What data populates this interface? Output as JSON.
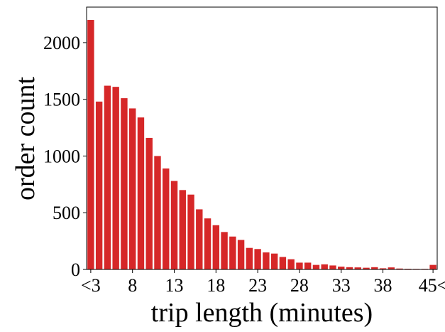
{
  "chart_data": {
    "type": "bar",
    "x_label": "trip length (minutes)",
    "y_label": "order count",
    "categories": [
      "<3",
      null,
      null,
      null,
      null,
      "8",
      null,
      null,
      null,
      null,
      "13",
      null,
      null,
      null,
      null,
      "18",
      null,
      null,
      null,
      null,
      "23",
      null,
      null,
      null,
      null,
      "28",
      null,
      null,
      null,
      null,
      "33",
      null,
      null,
      null,
      null,
      "38",
      null,
      null,
      null,
      null,
      null,
      "45<"
    ],
    "values": [
      2200,
      1480,
      1620,
      1610,
      1510,
      1420,
      1340,
      1160,
      1000,
      890,
      780,
      700,
      660,
      530,
      450,
      390,
      330,
      290,
      260,
      190,
      180,
      150,
      140,
      110,
      90,
      60,
      60,
      40,
      45,
      35,
      25,
      20,
      18,
      15,
      20,
      10,
      18,
      8,
      6,
      5,
      5,
      40
    ],
    "color": "#d62728",
    "ylim": [
      0,
      2313
    ],
    "yticks": [
      0,
      500,
      1000,
      1500,
      2000
    ]
  }
}
